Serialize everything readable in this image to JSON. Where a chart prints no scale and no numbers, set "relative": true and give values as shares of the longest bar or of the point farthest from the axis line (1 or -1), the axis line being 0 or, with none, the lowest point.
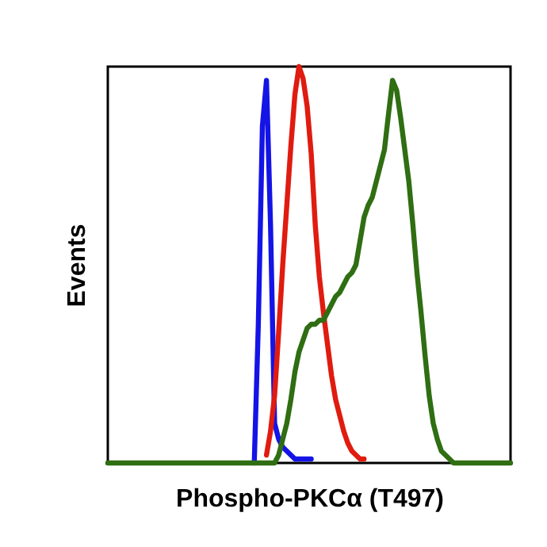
{
  "chart_data": {
    "type": "line",
    "xlabel": "Phospho-PKCα (T497)",
    "ylabel": "Events",
    "relative": true,
    "tick_labels": false,
    "grid": false,
    "legend": false,
    "line_style": "solid",
    "categories": [
      null,
      null,
      null,
      null,
      null,
      null,
      null,
      null,
      null,
      null,
      null,
      null,
      null,
      null,
      null,
      null,
      null,
      null,
      null,
      null,
      null,
      null,
      null,
      null,
      null,
      null,
      null,
      null,
      null,
      null,
      null,
      null,
      null,
      null,
      null,
      null,
      null,
      null,
      null,
      null,
      null,
      null,
      null,
      null,
      null,
      null,
      null,
      null,
      null,
      null,
      null,
      null,
      null,
      null,
      null,
      null,
      null,
      null,
      null,
      null,
      null,
      null,
      null,
      null,
      null,
      null,
      null,
      null,
      null,
      null,
      null,
      null,
      null,
      null,
      null,
      null,
      null,
      null,
      null,
      null,
      null,
      null,
      null,
      null,
      null,
      null,
      null,
      null,
      null,
      null,
      null,
      null,
      null,
      null,
      null,
      null,
      null,
      null,
      null,
      null
    ],
    "series": [
      {
        "color": "#1414e6",
        "values": [
          null,
          null,
          null,
          null,
          null,
          null,
          null,
          null,
          null,
          null,
          null,
          null,
          null,
          null,
          null,
          null,
          null,
          null,
          null,
          null,
          null,
          null,
          null,
          null,
          null,
          null,
          null,
          null,
          null,
          null,
          null,
          null,
          null,
          null,
          null,
          null,
          0,
          0.35,
          0.85,
          0.965,
          0.6,
          0.1,
          0.06,
          0.04,
          0.03,
          0.02,
          0.01,
          0.01,
          0.01,
          0.01,
          0.01,
          null,
          null,
          null,
          null,
          null,
          null,
          null,
          null,
          null,
          null,
          null,
          null,
          null,
          null,
          null,
          null,
          null,
          null,
          null,
          null,
          null,
          null,
          null,
          null,
          null,
          null,
          null,
          null,
          null,
          null,
          null,
          null,
          null,
          null,
          null,
          null,
          null,
          null,
          null,
          null,
          null,
          null,
          null,
          null,
          null,
          null,
          null,
          null,
          null
        ]
      },
      {
        "color": "#e01b10",
        "values": [
          null,
          null,
          null,
          null,
          null,
          null,
          null,
          null,
          null,
          null,
          null,
          null,
          null,
          null,
          null,
          null,
          null,
          null,
          null,
          null,
          null,
          null,
          null,
          null,
          null,
          null,
          null,
          null,
          null,
          null,
          null,
          null,
          null,
          null,
          null,
          null,
          null,
          null,
          null,
          0.02,
          0.08,
          0.17,
          0.33,
          0.5,
          0.65,
          0.8,
          0.93,
          1,
          0.97,
          0.9,
          0.78,
          0.6,
          0.47,
          0.38,
          0.3,
          0.22,
          0.16,
          0.12,
          0.08,
          0.05,
          0.03,
          0.02,
          0.01,
          0.01,
          null,
          null,
          null,
          null,
          null,
          null,
          null,
          null,
          null,
          null,
          null,
          null,
          null,
          null,
          null,
          null,
          null,
          null,
          null,
          null,
          null,
          null,
          null,
          null,
          null,
          null,
          null,
          null,
          null,
          null,
          null,
          null,
          null,
          null,
          null,
          null
        ]
      },
      {
        "color": "#2f6e12",
        "values": [
          0,
          0,
          0,
          0,
          0,
          0,
          0,
          0,
          0,
          0,
          0,
          0,
          0,
          0,
          0,
          0,
          0,
          0,
          0,
          0,
          0,
          0,
          0,
          0,
          0,
          0,
          0,
          0,
          0,
          0,
          0,
          0,
          0,
          0,
          0,
          0,
          0,
          0,
          0,
          0,
          0,
          0,
          0.02,
          0.06,
          0.1,
          0.16,
          0.23,
          0.28,
          0.31,
          0.34,
          0.35,
          0.35,
          0.36,
          0.36,
          0.38,
          0.4,
          0.42,
          0.43,
          0.45,
          0.47,
          0.48,
          0.5,
          0.56,
          0.62,
          0.65,
          0.67,
          0.71,
          0.75,
          0.79,
          0.88,
          0.965,
          0.94,
          0.87,
          0.79,
          0.71,
          0.6,
          0.48,
          0.38,
          0.27,
          0.17,
          0.1,
          0.06,
          0.03,
          0.02,
          0.01,
          0,
          0,
          0,
          0,
          0,
          0,
          0,
          0,
          0,
          0,
          0,
          0,
          0,
          0,
          0
        ]
      }
    ]
  }
}
